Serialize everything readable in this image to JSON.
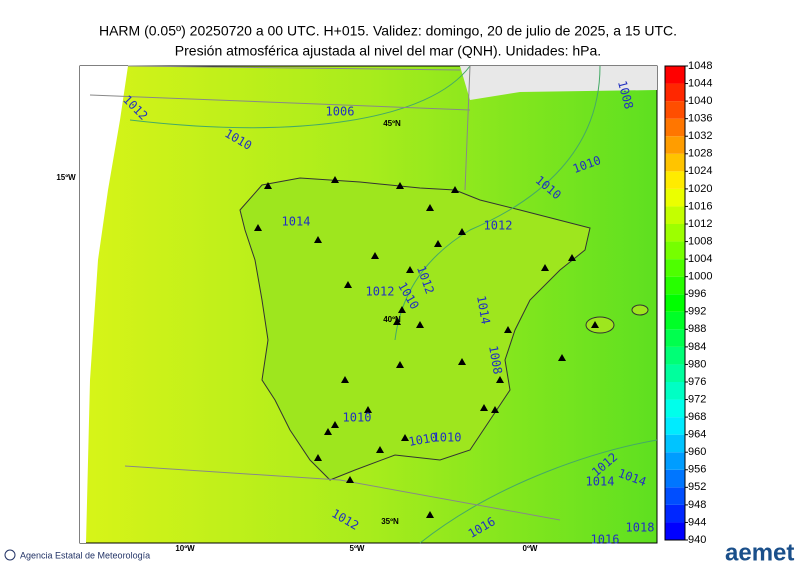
{
  "header": {
    "title_line1": "HARM (0.05º) 20250720 a 00 UTC. H+015. Validez: domingo, 20 de julio de 2025, a 15 UTC.",
    "title_line2": "Presión atmosférica ajustada al nivel del mar (QNH). Unidades: hPa."
  },
  "colorbar": {
    "ticks": [
      940,
      944,
      948,
      952,
      956,
      960,
      964,
      968,
      972,
      976,
      980,
      984,
      988,
      992,
      996,
      1000,
      1004,
      1008,
      1012,
      1016,
      1020,
      1024,
      1028,
      1032,
      1036,
      1040,
      1044,
      1048
    ]
  },
  "contour_labels": [
    1006,
    1012,
    1010,
    1014,
    1012,
    1010,
    1010,
    1008,
    1012,
    1012,
    1010,
    1014,
    1008,
    1010,
    1010,
    1010,
    1012,
    1014,
    1014,
    1012,
    1016,
    1016,
    1018
  ],
  "graticule_labels": [
    "45ºN",
    "40ºN",
    "35ºN",
    "15ºW",
    "10ºW",
    "5ºW",
    "0ºW"
  ],
  "footer": {
    "agency": "Agencia Estatal de Meteorología",
    "logo": "aemet"
  }
}
